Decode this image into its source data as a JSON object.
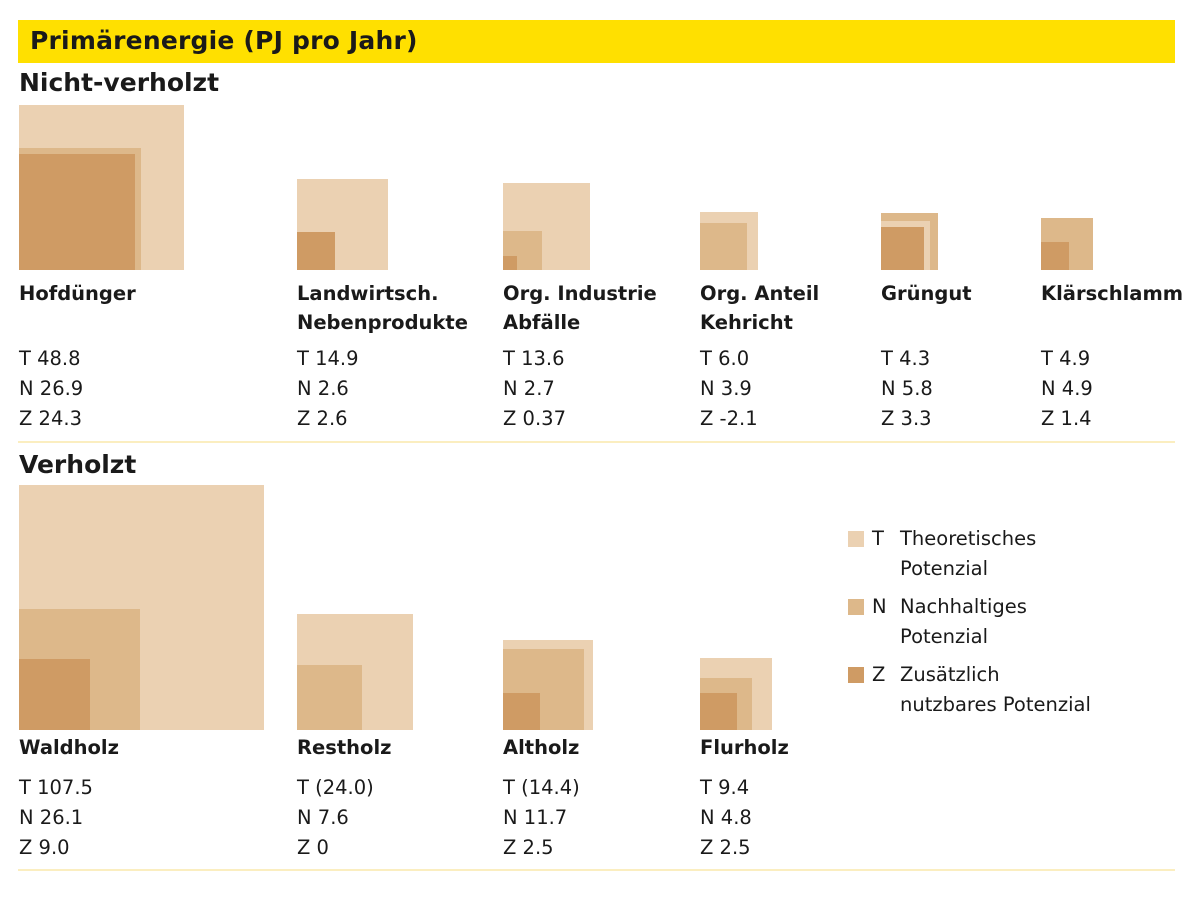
{
  "title": "Primärenergie (PJ pro Jahr)",
  "colors": {
    "title_bar": "#ffe000",
    "T": "#ebd1b2",
    "N": "#ddb88a",
    "Z": "#cf9b64",
    "rule": "#fbeec0"
  },
  "chart_data": [
    {
      "type": "area-squares",
      "title": "Nicht-verholzt",
      "categories": [
        "Hofdünger",
        "Landwirtsch. Nebenprodukte",
        "Org. Industrie Abfälle",
        "Org. Anteil Kehricht",
        "Grüngut",
        "Klärschlamm"
      ],
      "series": [
        {
          "name": "Theoretisches Potenzial",
          "code": "T",
          "values": [
            48.8,
            14.9,
            13.6,
            6.0,
            4.3,
            4.9
          ],
          "labels": [
            "T 48.8",
            "T 14.9",
            "T 13.6",
            "T 6.0",
            "T 4.3",
            "T 4.9"
          ]
        },
        {
          "name": "Nachhaltiges Potenzial",
          "code": "N",
          "values": [
            26.9,
            2.6,
            2.7,
            3.9,
            5.8,
            4.9
          ],
          "labels": [
            "N 26.9",
            "N 2.6",
            "N 2.7",
            "N 3.9",
            "N 5.8",
            "N 4.9"
          ]
        },
        {
          "name": "Zusätzlich nutzbares Potenzial",
          "code": "Z",
          "values": [
            24.3,
            2.6,
            0.37,
            -2.1,
            3.3,
            1.4
          ],
          "labels": [
            "Z 24.3",
            "Z 2.6",
            "Z 0.37",
            "Z -2.1",
            "Z 3.3",
            "Z 1.4"
          ]
        }
      ],
      "name_lines": [
        [
          "Hofdünger"
        ],
        [
          "Landwirtsch.",
          "Nebenprodukte"
        ],
        [
          "Org. Industrie",
          "Abfälle"
        ],
        [
          "Org. Anteil",
          "Kehricht"
        ],
        [
          "Grüngut"
        ],
        [
          "Klärschlamm"
        ]
      ]
    },
    {
      "type": "area-squares",
      "title": "Verholzt",
      "categories": [
        "Waldholz",
        "Restholz",
        "Altholz",
        "Flurholz"
      ],
      "series": [
        {
          "name": "Theoretisches Potenzial",
          "code": "T",
          "values": [
            107.5,
            24.0,
            14.4,
            9.4
          ],
          "labels": [
            "T 107.5",
            "T (24.0)",
            "T (14.4)",
            "T 9.4"
          ]
        },
        {
          "name": "Nachhaltiges Potenzial",
          "code": "N",
          "values": [
            26.1,
            7.6,
            11.7,
            4.8
          ],
          "labels": [
            "N 26.1",
            "N 7.6",
            "N 11.7",
            "N 4.8"
          ]
        },
        {
          "name": "Zusätzlich nutzbares Potenzial",
          "code": "Z",
          "values": [
            9.0,
            0,
            2.5,
            2.5
          ],
          "labels": [
            "Z 9.0",
            "Z 0",
            "Z 2.5",
            "Z 2.5"
          ]
        }
      ],
      "name_lines": [
        [
          "Waldholz"
        ],
        [
          "Restholz"
        ],
        [
          "Altholz"
        ],
        [
          "Flurholz"
        ]
      ]
    }
  ],
  "legend": [
    {
      "code": "T",
      "label": "Theoretisches Potenzial"
    },
    {
      "code": "N",
      "label": "Nachhaltiges Potenzial"
    },
    {
      "code": "Z",
      "label": "Zusätzlich nutzbares Potenzial"
    }
  ]
}
